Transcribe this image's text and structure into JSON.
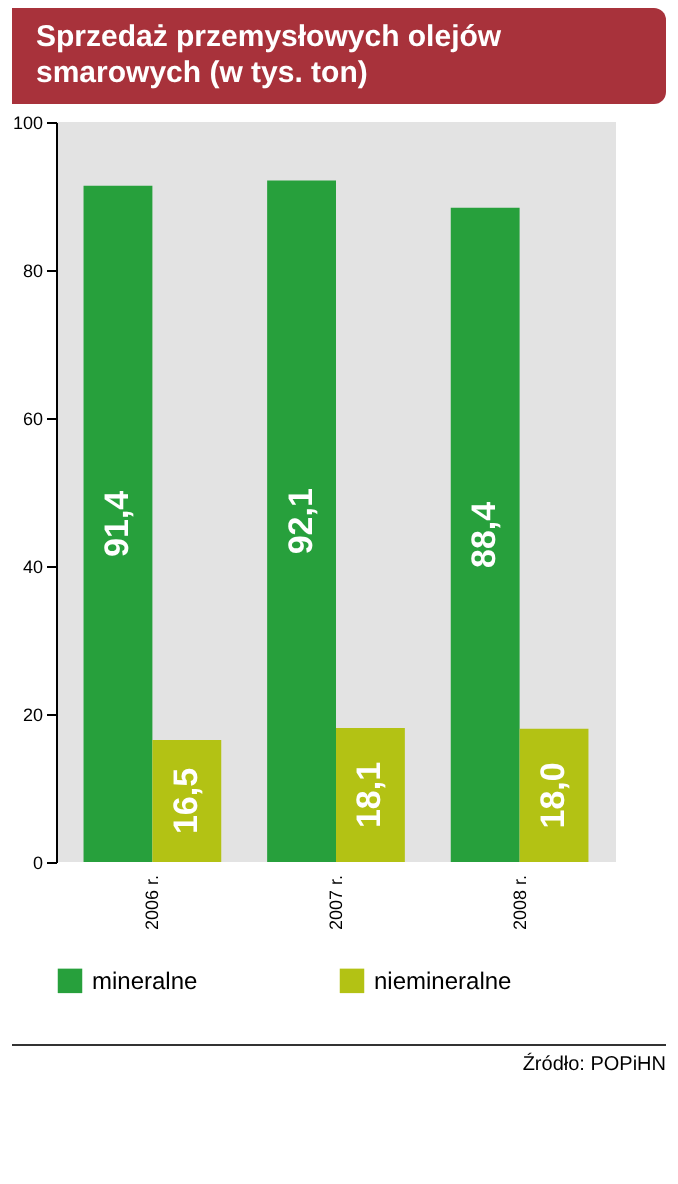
{
  "chart_data": {
    "type": "bar",
    "title": "Sprzedaż przemysłowych olejów smarowych (w tys. ton)",
    "categories": [
      "2006 r.",
      "2007 r.",
      "2008 r."
    ],
    "series": [
      {
        "name": "mineralne",
        "color": "#27a03c",
        "values": [
          91.4,
          92.1,
          88.4
        ],
        "value_labels": [
          "91,4",
          "92,1",
          "88,4"
        ]
      },
      {
        "name": "niemineralne",
        "color": "#b3c214",
        "values": [
          16.5,
          18.1,
          18.0
        ],
        "value_labels": [
          "16,5",
          "18,1",
          "18,0"
        ]
      }
    ],
    "ylim": [
      0,
      100
    ],
    "yticks": [
      0,
      20,
      40,
      60,
      80,
      100
    ],
    "grid": false,
    "legend": "bottom",
    "annotations": [
      "Źródło: POPiHN"
    ]
  }
}
